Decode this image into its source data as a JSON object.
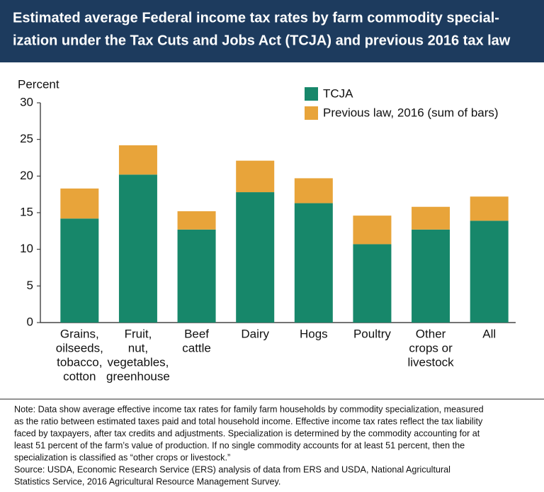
{
  "chart_data": {
    "type": "stacked_bar",
    "title": [
      "Estimated average Federal income tax rates by farm commodity special-",
      "ization under the Tax Cuts and Jobs Act (TCJA) and previous 2016 tax law"
    ],
    "y_label": "Percent",
    "categories": [
      [
        "Grains,",
        "oilseeds,",
        "tobacco,",
        "cotton"
      ],
      [
        "Fruit,",
        "nut,",
        "vegetables,",
        "greenhouse"
      ],
      [
        "Beef",
        "cattle"
      ],
      [
        "Dairy"
      ],
      [
        "Hogs"
      ],
      [
        "Poultry"
      ],
      [
        "Other",
        "crops or",
        "livestock"
      ],
      [
        "All"
      ]
    ],
    "series": [
      {
        "name": "TCJA",
        "color": "#17876a",
        "values": [
          14.2,
          20.2,
          12.7,
          17.8,
          16.3,
          10.7,
          12.7,
          13.9
        ]
      },
      {
        "name": "Previous law, 2016 (sum of bars)",
        "color": "#e8a43a",
        "values": [
          4.1,
          4.0,
          2.5,
          4.3,
          3.4,
          3.9,
          3.1,
          3.3
        ]
      }
    ],
    "ylim": [
      0,
      30
    ],
    "yticks": [
      0,
      5,
      10,
      15,
      20,
      25,
      30
    ],
    "grid": false
  },
  "note": [
    "Note: Data show average effective income tax rates for family farm households by commodity specialization, measured",
    "as the ratio between estimated taxes paid and total household income. Effective income tax rates reflect the tax liability",
    "faced by taxpayers, after tax credits and adjustments. Specialization is determined by the commodity accounting for at",
    "least 51 percent of the farm’s value of production. If no single commodity accounts for at least 51 percent, then the",
    "specialization is classified as “other crops or livestock.”"
  ],
  "source": [
    "Source: USDA, Economic Research Service (ERS) analysis of data from ERS and USDA, National Agricultural",
    "Statistics Service, 2016 Agricultural Resource Management Survey."
  ]
}
